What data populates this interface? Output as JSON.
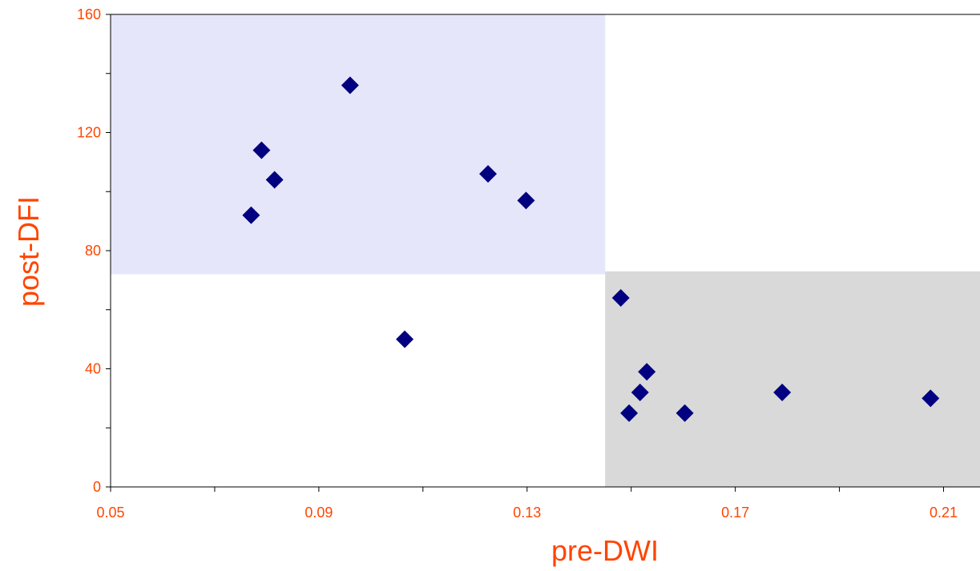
{
  "colors": {
    "text": "#ff4500",
    "marker": "#000080",
    "region_upper_left": "#e6e6fa",
    "region_lower_right": "#d9d9d9",
    "axis": "#000000"
  },
  "chart_data": {
    "type": "scatter",
    "title": "",
    "xlabel": "pre-DWI",
    "ylabel": "post-DFI",
    "xlim": [
      0.05,
      0.217
    ],
    "ylim": [
      0,
      160
    ],
    "x_ticks": [
      0.05,
      0.09,
      0.13,
      0.17,
      0.21
    ],
    "x_tick_labels": [
      "0.05",
      "0.09",
      "0.13",
      "0.17",
      "0.21"
    ],
    "x_minor_ticks": [
      0.07,
      0.11,
      0.15,
      0.19
    ],
    "y_ticks": [
      0,
      40,
      80,
      120,
      160
    ],
    "y_tick_labels": [
      "0",
      "40",
      "80",
      "120",
      "160"
    ],
    "y_minor_ticks": [
      20,
      60,
      100,
      140
    ],
    "grid": false,
    "legend": "none",
    "marker": "diamond",
    "shaded_regions": [
      {
        "x": [
          0.05,
          0.145
        ],
        "y": [
          72,
          160
        ],
        "color": "#e6e6fa"
      },
      {
        "x": [
          0.145,
          0.217
        ],
        "y": [
          0,
          73
        ],
        "color": "#d9d9d9"
      }
    ],
    "series": [
      {
        "points": [
          {
            "x": 0.077,
            "y": 92
          },
          {
            "x": 0.079,
            "y": 114
          },
          {
            "x": 0.0815,
            "y": 104
          },
          {
            "x": 0.096,
            "y": 136
          },
          {
            "x": 0.1065,
            "y": 50
          },
          {
            "x": 0.1225,
            "y": 106
          },
          {
            "x": 0.1298,
            "y": 97
          },
          {
            "x": 0.148,
            "y": 64
          },
          {
            "x": 0.1496,
            "y": 25
          },
          {
            "x": 0.1517,
            "y": 32
          },
          {
            "x": 0.153,
            "y": 39
          },
          {
            "x": 0.1603,
            "y": 25
          },
          {
            "x": 0.179,
            "y": 32
          },
          {
            "x": 0.2075,
            "y": 30
          }
        ]
      }
    ]
  }
}
